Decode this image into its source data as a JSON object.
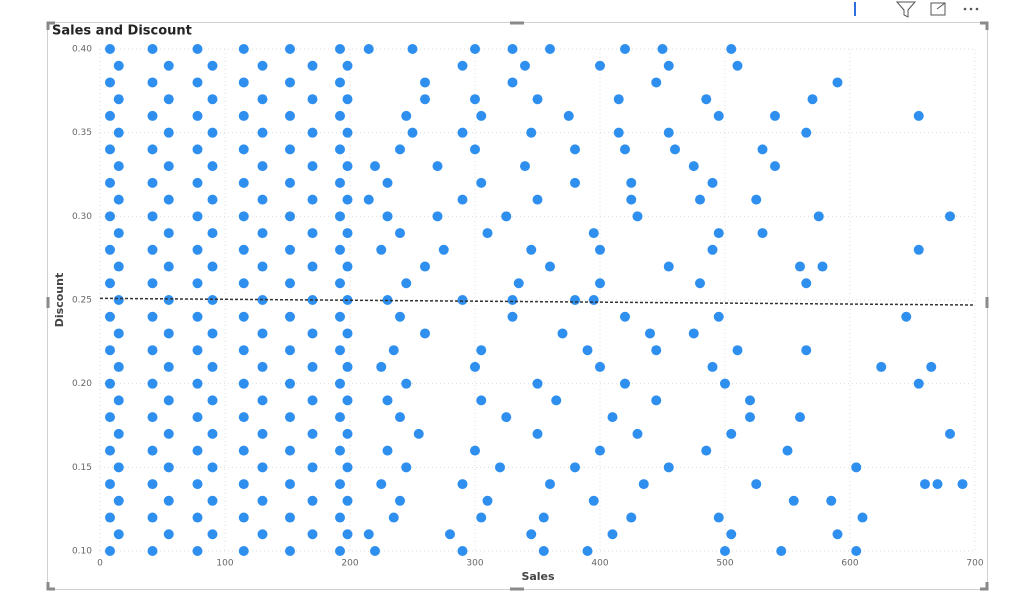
{
  "chart_data": {
    "type": "scatter",
    "title": "Sales and Discount",
    "x_label": "Sales",
    "y_label": "Discount",
    "color": "#2f8fef",
    "xlim": [
      0,
      700
    ],
    "ylim": [
      0.1,
      0.4
    ],
    "xticks": [
      0,
      100,
      200,
      300,
      400,
      500,
      600,
      700
    ],
    "yticks": [
      {
        "value": 0.1,
        "label": "0.10"
      },
      {
        "value": 0.15,
        "label": "0.15"
      },
      {
        "value": 0.2,
        "label": "0.20"
      },
      {
        "value": 0.25,
        "label": "0.25"
      },
      {
        "value": 0.3,
        "label": "0.30"
      },
      {
        "value": 0.35,
        "label": "0.35"
      },
      {
        "value": 0.4,
        "label": "0.40"
      }
    ],
    "grid": true,
    "trend_line": {
      "x": [
        0,
        700
      ],
      "y": [
        0.251,
        0.247
      ]
    },
    "points": [
      [
        8,
        0.4
      ],
      [
        42,
        0.4
      ],
      [
        78,
        0.4
      ],
      [
        115,
        0.4
      ],
      [
        152,
        0.4
      ],
      [
        192,
        0.4
      ],
      [
        215,
        0.4
      ],
      [
        250,
        0.4
      ],
      [
        300,
        0.4
      ],
      [
        330,
        0.4
      ],
      [
        360,
        0.4
      ],
      [
        420,
        0.4
      ],
      [
        450,
        0.4
      ],
      [
        505,
        0.4
      ],
      [
        15,
        0.39
      ],
      [
        55,
        0.39
      ],
      [
        90,
        0.39
      ],
      [
        130,
        0.39
      ],
      [
        170,
        0.39
      ],
      [
        198,
        0.39
      ],
      [
        290,
        0.39
      ],
      [
        340,
        0.39
      ],
      [
        400,
        0.39
      ],
      [
        455,
        0.39
      ],
      [
        510,
        0.39
      ],
      [
        8,
        0.38
      ],
      [
        42,
        0.38
      ],
      [
        78,
        0.38
      ],
      [
        115,
        0.38
      ],
      [
        152,
        0.38
      ],
      [
        192,
        0.38
      ],
      [
        260,
        0.38
      ],
      [
        330,
        0.38
      ],
      [
        445,
        0.38
      ],
      [
        590,
        0.38
      ],
      [
        15,
        0.37
      ],
      [
        55,
        0.37
      ],
      [
        90,
        0.37
      ],
      [
        130,
        0.37
      ],
      [
        170,
        0.37
      ],
      [
        198,
        0.37
      ],
      [
        260,
        0.37
      ],
      [
        300,
        0.37
      ],
      [
        350,
        0.37
      ],
      [
        415,
        0.37
      ],
      [
        485,
        0.37
      ],
      [
        570,
        0.37
      ],
      [
        8,
        0.36
      ],
      [
        42,
        0.36
      ],
      [
        78,
        0.36
      ],
      [
        115,
        0.36
      ],
      [
        152,
        0.36
      ],
      [
        192,
        0.36
      ],
      [
        245,
        0.36
      ],
      [
        305,
        0.36
      ],
      [
        375,
        0.36
      ],
      [
        495,
        0.36
      ],
      [
        540,
        0.36
      ],
      [
        655,
        0.36
      ],
      [
        15,
        0.35
      ],
      [
        55,
        0.35
      ],
      [
        90,
        0.35
      ],
      [
        130,
        0.35
      ],
      [
        170,
        0.35
      ],
      [
        198,
        0.35
      ],
      [
        250,
        0.35
      ],
      [
        290,
        0.35
      ],
      [
        345,
        0.35
      ],
      [
        415,
        0.35
      ],
      [
        455,
        0.35
      ],
      [
        565,
        0.35
      ],
      [
        8,
        0.34
      ],
      [
        42,
        0.34
      ],
      [
        78,
        0.34
      ],
      [
        115,
        0.34
      ],
      [
        152,
        0.34
      ],
      [
        192,
        0.34
      ],
      [
        240,
        0.34
      ],
      [
        300,
        0.34
      ],
      [
        380,
        0.34
      ],
      [
        420,
        0.34
      ],
      [
        460,
        0.34
      ],
      [
        530,
        0.34
      ],
      [
        15,
        0.33
      ],
      [
        55,
        0.33
      ],
      [
        90,
        0.33
      ],
      [
        130,
        0.33
      ],
      [
        170,
        0.33
      ],
      [
        198,
        0.33
      ],
      [
        220,
        0.33
      ],
      [
        270,
        0.33
      ],
      [
        340,
        0.33
      ],
      [
        475,
        0.33
      ],
      [
        540,
        0.33
      ],
      [
        8,
        0.32
      ],
      [
        42,
        0.32
      ],
      [
        78,
        0.32
      ],
      [
        115,
        0.32
      ],
      [
        152,
        0.32
      ],
      [
        192,
        0.32
      ],
      [
        230,
        0.32
      ],
      [
        305,
        0.32
      ],
      [
        380,
        0.32
      ],
      [
        425,
        0.32
      ],
      [
        490,
        0.32
      ],
      [
        15,
        0.31
      ],
      [
        55,
        0.31
      ],
      [
        90,
        0.31
      ],
      [
        130,
        0.31
      ],
      [
        170,
        0.31
      ],
      [
        198,
        0.31
      ],
      [
        215,
        0.31
      ],
      [
        290,
        0.31
      ],
      [
        350,
        0.31
      ],
      [
        425,
        0.31
      ],
      [
        480,
        0.31
      ],
      [
        525,
        0.31
      ],
      [
        8,
        0.3
      ],
      [
        42,
        0.3
      ],
      [
        78,
        0.3
      ],
      [
        115,
        0.3
      ],
      [
        152,
        0.3
      ],
      [
        192,
        0.3
      ],
      [
        230,
        0.3
      ],
      [
        270,
        0.3
      ],
      [
        325,
        0.3
      ],
      [
        430,
        0.3
      ],
      [
        575,
        0.3
      ],
      [
        680,
        0.3
      ],
      [
        15,
        0.29
      ],
      [
        55,
        0.29
      ],
      [
        90,
        0.29
      ],
      [
        130,
        0.29
      ],
      [
        170,
        0.29
      ],
      [
        198,
        0.29
      ],
      [
        240,
        0.29
      ],
      [
        310,
        0.29
      ],
      [
        395,
        0.29
      ],
      [
        495,
        0.29
      ],
      [
        530,
        0.29
      ],
      [
        8,
        0.28
      ],
      [
        42,
        0.28
      ],
      [
        78,
        0.28
      ],
      [
        115,
        0.28
      ],
      [
        152,
        0.28
      ],
      [
        192,
        0.28
      ],
      [
        225,
        0.28
      ],
      [
        275,
        0.28
      ],
      [
        345,
        0.28
      ],
      [
        400,
        0.28
      ],
      [
        490,
        0.28
      ],
      [
        655,
        0.28
      ],
      [
        15,
        0.27
      ],
      [
        55,
        0.27
      ],
      [
        90,
        0.27
      ],
      [
        130,
        0.27
      ],
      [
        170,
        0.27
      ],
      [
        198,
        0.27
      ],
      [
        260,
        0.27
      ],
      [
        360,
        0.27
      ],
      [
        455,
        0.27
      ],
      [
        560,
        0.27
      ],
      [
        578,
        0.27
      ],
      [
        8,
        0.26
      ],
      [
        42,
        0.26
      ],
      [
        78,
        0.26
      ],
      [
        115,
        0.26
      ],
      [
        152,
        0.26
      ],
      [
        192,
        0.26
      ],
      [
        245,
        0.26
      ],
      [
        335,
        0.26
      ],
      [
        400,
        0.26
      ],
      [
        480,
        0.26
      ],
      [
        565,
        0.26
      ],
      [
        15,
        0.25
      ],
      [
        55,
        0.25
      ],
      [
        90,
        0.25
      ],
      [
        130,
        0.25
      ],
      [
        170,
        0.25
      ],
      [
        198,
        0.25
      ],
      [
        230,
        0.25
      ],
      [
        290,
        0.25
      ],
      [
        330,
        0.25
      ],
      [
        380,
        0.25
      ],
      [
        395,
        0.25
      ],
      [
        8,
        0.24
      ],
      [
        42,
        0.24
      ],
      [
        78,
        0.24
      ],
      [
        115,
        0.24
      ],
      [
        152,
        0.24
      ],
      [
        192,
        0.24
      ],
      [
        240,
        0.24
      ],
      [
        330,
        0.24
      ],
      [
        420,
        0.24
      ],
      [
        495,
        0.24
      ],
      [
        645,
        0.24
      ],
      [
        15,
        0.23
      ],
      [
        55,
        0.23
      ],
      [
        90,
        0.23
      ],
      [
        130,
        0.23
      ],
      [
        170,
        0.23
      ],
      [
        198,
        0.23
      ],
      [
        260,
        0.23
      ],
      [
        370,
        0.23
      ],
      [
        440,
        0.23
      ],
      [
        475,
        0.23
      ],
      [
        8,
        0.22
      ],
      [
        42,
        0.22
      ],
      [
        78,
        0.22
      ],
      [
        115,
        0.22
      ],
      [
        152,
        0.22
      ],
      [
        192,
        0.22
      ],
      [
        235,
        0.22
      ],
      [
        305,
        0.22
      ],
      [
        390,
        0.22
      ],
      [
        445,
        0.22
      ],
      [
        510,
        0.22
      ],
      [
        565,
        0.22
      ],
      [
        15,
        0.21
      ],
      [
        55,
        0.21
      ],
      [
        90,
        0.21
      ],
      [
        130,
        0.21
      ],
      [
        170,
        0.21
      ],
      [
        198,
        0.21
      ],
      [
        225,
        0.21
      ],
      [
        300,
        0.21
      ],
      [
        400,
        0.21
      ],
      [
        490,
        0.21
      ],
      [
        625,
        0.21
      ],
      [
        665,
        0.21
      ],
      [
        8,
        0.2
      ],
      [
        42,
        0.2
      ],
      [
        78,
        0.2
      ],
      [
        115,
        0.2
      ],
      [
        152,
        0.2
      ],
      [
        192,
        0.2
      ],
      [
        245,
        0.2
      ],
      [
        350,
        0.2
      ],
      [
        420,
        0.2
      ],
      [
        500,
        0.2
      ],
      [
        655,
        0.2
      ],
      [
        15,
        0.19
      ],
      [
        55,
        0.19
      ],
      [
        90,
        0.19
      ],
      [
        130,
        0.19
      ],
      [
        170,
        0.19
      ],
      [
        198,
        0.19
      ],
      [
        230,
        0.19
      ],
      [
        305,
        0.19
      ],
      [
        365,
        0.19
      ],
      [
        445,
        0.19
      ],
      [
        520,
        0.19
      ],
      [
        8,
        0.18
      ],
      [
        42,
        0.18
      ],
      [
        78,
        0.18
      ],
      [
        115,
        0.18
      ],
      [
        152,
        0.18
      ],
      [
        192,
        0.18
      ],
      [
        240,
        0.18
      ],
      [
        325,
        0.18
      ],
      [
        410,
        0.18
      ],
      [
        520,
        0.18
      ],
      [
        560,
        0.18
      ],
      [
        15,
        0.17
      ],
      [
        55,
        0.17
      ],
      [
        90,
        0.17
      ],
      [
        130,
        0.17
      ],
      [
        170,
        0.17
      ],
      [
        198,
        0.17
      ],
      [
        255,
        0.17
      ],
      [
        350,
        0.17
      ],
      [
        430,
        0.17
      ],
      [
        505,
        0.17
      ],
      [
        680,
        0.17
      ],
      [
        8,
        0.16
      ],
      [
        42,
        0.16
      ],
      [
        78,
        0.16
      ],
      [
        115,
        0.16
      ],
      [
        152,
        0.16
      ],
      [
        192,
        0.16
      ],
      [
        230,
        0.16
      ],
      [
        300,
        0.16
      ],
      [
        400,
        0.16
      ],
      [
        485,
        0.16
      ],
      [
        550,
        0.16
      ],
      [
        15,
        0.15
      ],
      [
        55,
        0.15
      ],
      [
        90,
        0.15
      ],
      [
        130,
        0.15
      ],
      [
        170,
        0.15
      ],
      [
        198,
        0.15
      ],
      [
        245,
        0.15
      ],
      [
        320,
        0.15
      ],
      [
        380,
        0.15
      ],
      [
        455,
        0.15
      ],
      [
        605,
        0.15
      ],
      [
        8,
        0.14
      ],
      [
        42,
        0.14
      ],
      [
        78,
        0.14
      ],
      [
        115,
        0.14
      ],
      [
        152,
        0.14
      ],
      [
        192,
        0.14
      ],
      [
        225,
        0.14
      ],
      [
        290,
        0.14
      ],
      [
        360,
        0.14
      ],
      [
        435,
        0.14
      ],
      [
        525,
        0.14
      ],
      [
        660,
        0.14
      ],
      [
        670,
        0.14
      ],
      [
        690,
        0.14
      ],
      [
        15,
        0.13
      ],
      [
        55,
        0.13
      ],
      [
        90,
        0.13
      ],
      [
        130,
        0.13
      ],
      [
        170,
        0.13
      ],
      [
        198,
        0.13
      ],
      [
        240,
        0.13
      ],
      [
        310,
        0.13
      ],
      [
        395,
        0.13
      ],
      [
        555,
        0.13
      ],
      [
        585,
        0.13
      ],
      [
        8,
        0.12
      ],
      [
        42,
        0.12
      ],
      [
        78,
        0.12
      ],
      [
        115,
        0.12
      ],
      [
        152,
        0.12
      ],
      [
        192,
        0.12
      ],
      [
        235,
        0.12
      ],
      [
        305,
        0.12
      ],
      [
        355,
        0.12
      ],
      [
        425,
        0.12
      ],
      [
        495,
        0.12
      ],
      [
        610,
        0.12
      ],
      [
        15,
        0.11
      ],
      [
        55,
        0.11
      ],
      [
        90,
        0.11
      ],
      [
        130,
        0.11
      ],
      [
        170,
        0.11
      ],
      [
        198,
        0.11
      ],
      [
        215,
        0.11
      ],
      [
        280,
        0.11
      ],
      [
        345,
        0.11
      ],
      [
        410,
        0.11
      ],
      [
        505,
        0.11
      ],
      [
        590,
        0.11
      ],
      [
        8,
        0.1
      ],
      [
        42,
        0.1
      ],
      [
        78,
        0.1
      ],
      [
        115,
        0.1
      ],
      [
        152,
        0.1
      ],
      [
        192,
        0.1
      ],
      [
        220,
        0.1
      ],
      [
        290,
        0.1
      ],
      [
        355,
        0.1
      ],
      [
        390,
        0.1
      ],
      [
        500,
        0.1
      ],
      [
        545,
        0.1
      ],
      [
        605,
        0.1
      ]
    ]
  }
}
